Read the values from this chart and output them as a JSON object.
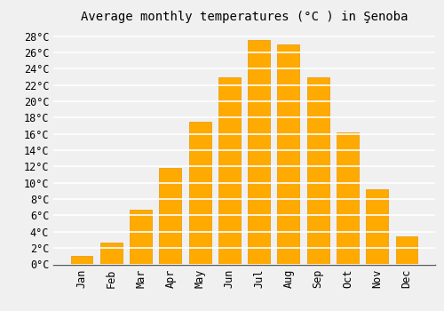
{
  "title": "Average monthly temperatures (°C ) in Şenoba",
  "months": [
    "Jan",
    "Feb",
    "Mar",
    "Apr",
    "May",
    "Jun",
    "Jul",
    "Aug",
    "Sep",
    "Oct",
    "Nov",
    "Dec"
  ],
  "values": [
    1.0,
    2.7,
    6.7,
    11.8,
    17.5,
    23.0,
    27.5,
    27.0,
    23.0,
    16.2,
    9.2,
    3.4
  ],
  "bar_color": "#FFAA00",
  "bar_edge_color": "#E89500",
  "background_color": "#F0F0F0",
  "grid_color": "#FFFFFF",
  "ylim": [
    0,
    29
  ],
  "yticks": [
    0,
    2,
    4,
    6,
    8,
    10,
    12,
    14,
    16,
    18,
    20,
    22,
    24,
    26,
    28
  ],
  "title_fontsize": 10,
  "tick_fontsize": 8.5,
  "bar_width": 0.75,
  "font_family": "monospace"
}
